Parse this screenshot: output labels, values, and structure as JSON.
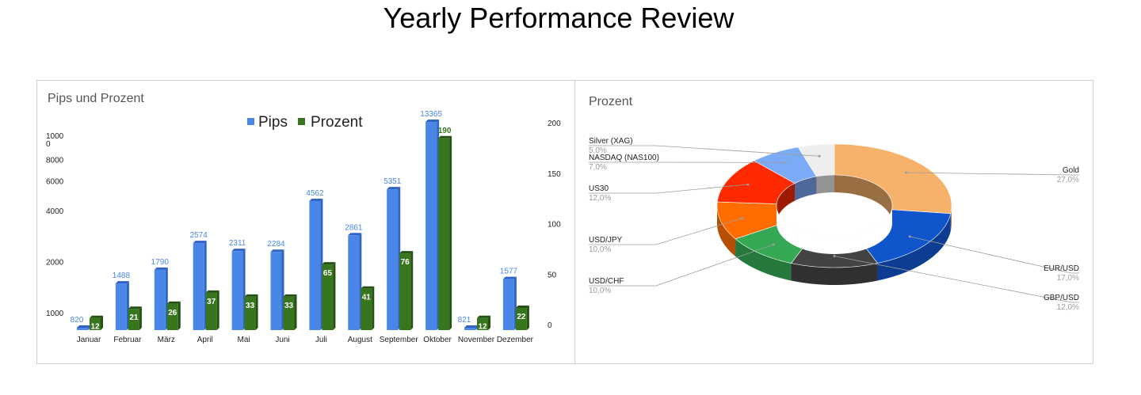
{
  "page": {
    "title": "Yearly Performance Review"
  },
  "colors": {
    "pips": "#4a86e8",
    "pips_dark": "#2f63c4",
    "prozent": "#38761d",
    "prozent_dark": "#245212",
    "pips_label": "#4a86e8",
    "prozent_label": "#38761d"
  },
  "chart_data": [
    {
      "type": "bar",
      "title": "Pips und Prozent",
      "legend": {
        "placement": "top",
        "entries": [
          "Pips",
          "Prozent"
        ]
      },
      "categories": [
        "Januar",
        "Februar",
        "März",
        "April",
        "Mai",
        "Juni",
        "Juli",
        "August",
        "September",
        "Oktober",
        "November",
        "Dezember"
      ],
      "series": [
        {
          "name": "Pips",
          "axis": "left",
          "values": [
            820,
            1488,
            1790,
            2574,
            2311,
            2284,
            4562,
            2861,
            5351,
            13365,
            821,
            1577
          ]
        },
        {
          "name": "Prozent",
          "axis": "right",
          "values": [
            12,
            21,
            26,
            37,
            33,
            33,
            65,
            41,
            76,
            190,
            12,
            22
          ]
        }
      ],
      "left_axis": {
        "ticks": [
          "1000",
          "2000",
          "4000",
          "6000",
          "8000",
          "1000\n0"
        ],
        "scale": "log"
      },
      "right_axis": {
        "ticks": [
          "0",
          "50",
          "100",
          "150",
          "200"
        ],
        "ylim": [
          0,
          200
        ]
      },
      "grid": false
    },
    {
      "type": "pie",
      "variant": "donut-3d",
      "title": "Prozent",
      "slices": [
        {
          "label": "Gold",
          "pct": "27,0%",
          "value": 27.0,
          "color": "#f6b26b",
          "side": "right"
        },
        {
          "label": "EUR/USD",
          "pct": "17,0%",
          "value": 17.0,
          "color": "#1155cc",
          "side": "right"
        },
        {
          "label": "GBP/USD",
          "pct": "12,0%",
          "value": 12.0,
          "color": "#434343",
          "side": "right"
        },
        {
          "label": "USD/CHF",
          "pct": "10,0%",
          "value": 10.0,
          "color": "#34a853",
          "side": "left"
        },
        {
          "label": "USD/JPY",
          "pct": "10,0%",
          "value": 10.0,
          "color": "#ff6d01",
          "side": "left"
        },
        {
          "label": "US30",
          "pct": "12,0%",
          "value": 12.0,
          "color": "#ff2a00",
          "side": "left"
        },
        {
          "label": "NASDAQ (NAS100)",
          "pct": "7,0%",
          "value": 7.0,
          "color": "#7baaf7",
          "side": "left"
        },
        {
          "label": "Silver (XAG)",
          "pct": "5,0%",
          "value": 5.0,
          "color": "#eeeeee",
          "side": "left"
        }
      ]
    }
  ]
}
